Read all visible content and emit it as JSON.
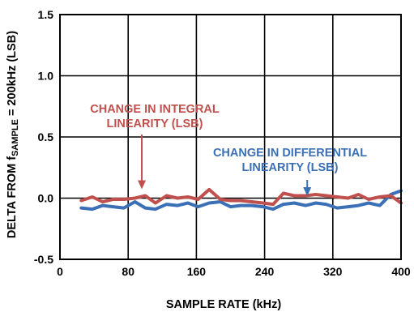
{
  "chart_data": {
    "type": "line",
    "xlabel": "SAMPLE RATE (kHz)",
    "ylabel": {
      "prefix": "DELTA FROM f",
      "subscript": "SAMPLE",
      "suffix": " = 200kHz (LSB)"
    },
    "xlim": [
      0,
      400
    ],
    "ylim": [
      -0.5,
      1.5
    ],
    "x_ticks": [
      0,
      80,
      160,
      240,
      320,
      400
    ],
    "y_ticks": [
      -0.5,
      0.0,
      0.5,
      1.0,
      1.5
    ],
    "x_tick_labels": [
      "0",
      "80",
      "160",
      "240",
      "320",
      "400"
    ],
    "y_tick_labels": [
      "-0.5",
      "0.0",
      "0.5",
      "1.0",
      "1.5"
    ],
    "grid": true,
    "series": [
      {
        "name": "CHANGE IN INTEGRAL LINEARITY (LSB)",
        "color": "#c0504d",
        "x": [
          25,
          38,
          50,
          62,
          75,
          88,
          100,
          112,
          125,
          138,
          150,
          162,
          175,
          188,
          200,
          212,
          225,
          238,
          250,
          262,
          275,
          288,
          300,
          312,
          325,
          338,
          350,
          362,
          375,
          388,
          400
        ],
        "y": [
          -0.02,
          0.01,
          -0.03,
          -0.01,
          -0.01,
          0.0,
          0.02,
          -0.04,
          0.02,
          0.0,
          0.01,
          -0.01,
          0.07,
          -0.01,
          -0.02,
          -0.02,
          -0.03,
          -0.04,
          -0.05,
          0.04,
          0.02,
          0.02,
          0.03,
          0.02,
          0.01,
          0.0,
          0.03,
          -0.01,
          0.01,
          0.02,
          -0.04
        ]
      },
      {
        "name": "CHANGE IN DIFFERENTIAL LINEARITY (LSB)",
        "color": "#3b6fb6",
        "x": [
          25,
          38,
          50,
          62,
          75,
          88,
          100,
          112,
          125,
          138,
          150,
          162,
          175,
          188,
          200,
          212,
          225,
          238,
          250,
          262,
          275,
          288,
          300,
          312,
          325,
          338,
          350,
          362,
          375,
          388,
          400
        ],
        "y": [
          -0.08,
          -0.09,
          -0.06,
          -0.07,
          -0.08,
          -0.03,
          -0.08,
          -0.09,
          -0.05,
          -0.06,
          -0.04,
          -0.07,
          -0.04,
          -0.03,
          -0.07,
          -0.06,
          -0.06,
          -0.07,
          -0.09,
          -0.05,
          -0.04,
          -0.06,
          -0.04,
          -0.05,
          -0.08,
          -0.07,
          -0.06,
          -0.04,
          -0.06,
          0.03,
          0.06
        ]
      }
    ],
    "annotations": [
      {
        "series": 0,
        "lines": [
          "CHANGE IN INTEGRAL",
          "LINEARITY (LSB)"
        ],
        "color": "#c0504d",
        "arrow_to": [
          96,
          0.02
        ]
      },
      {
        "series": 1,
        "lines": [
          "CHANGE IN DIFFERENTIAL",
          "LINEARITY (LSB)"
        ],
        "color": "#3b6fb6",
        "arrow_to": [
          290,
          -0.01
        ]
      }
    ]
  }
}
